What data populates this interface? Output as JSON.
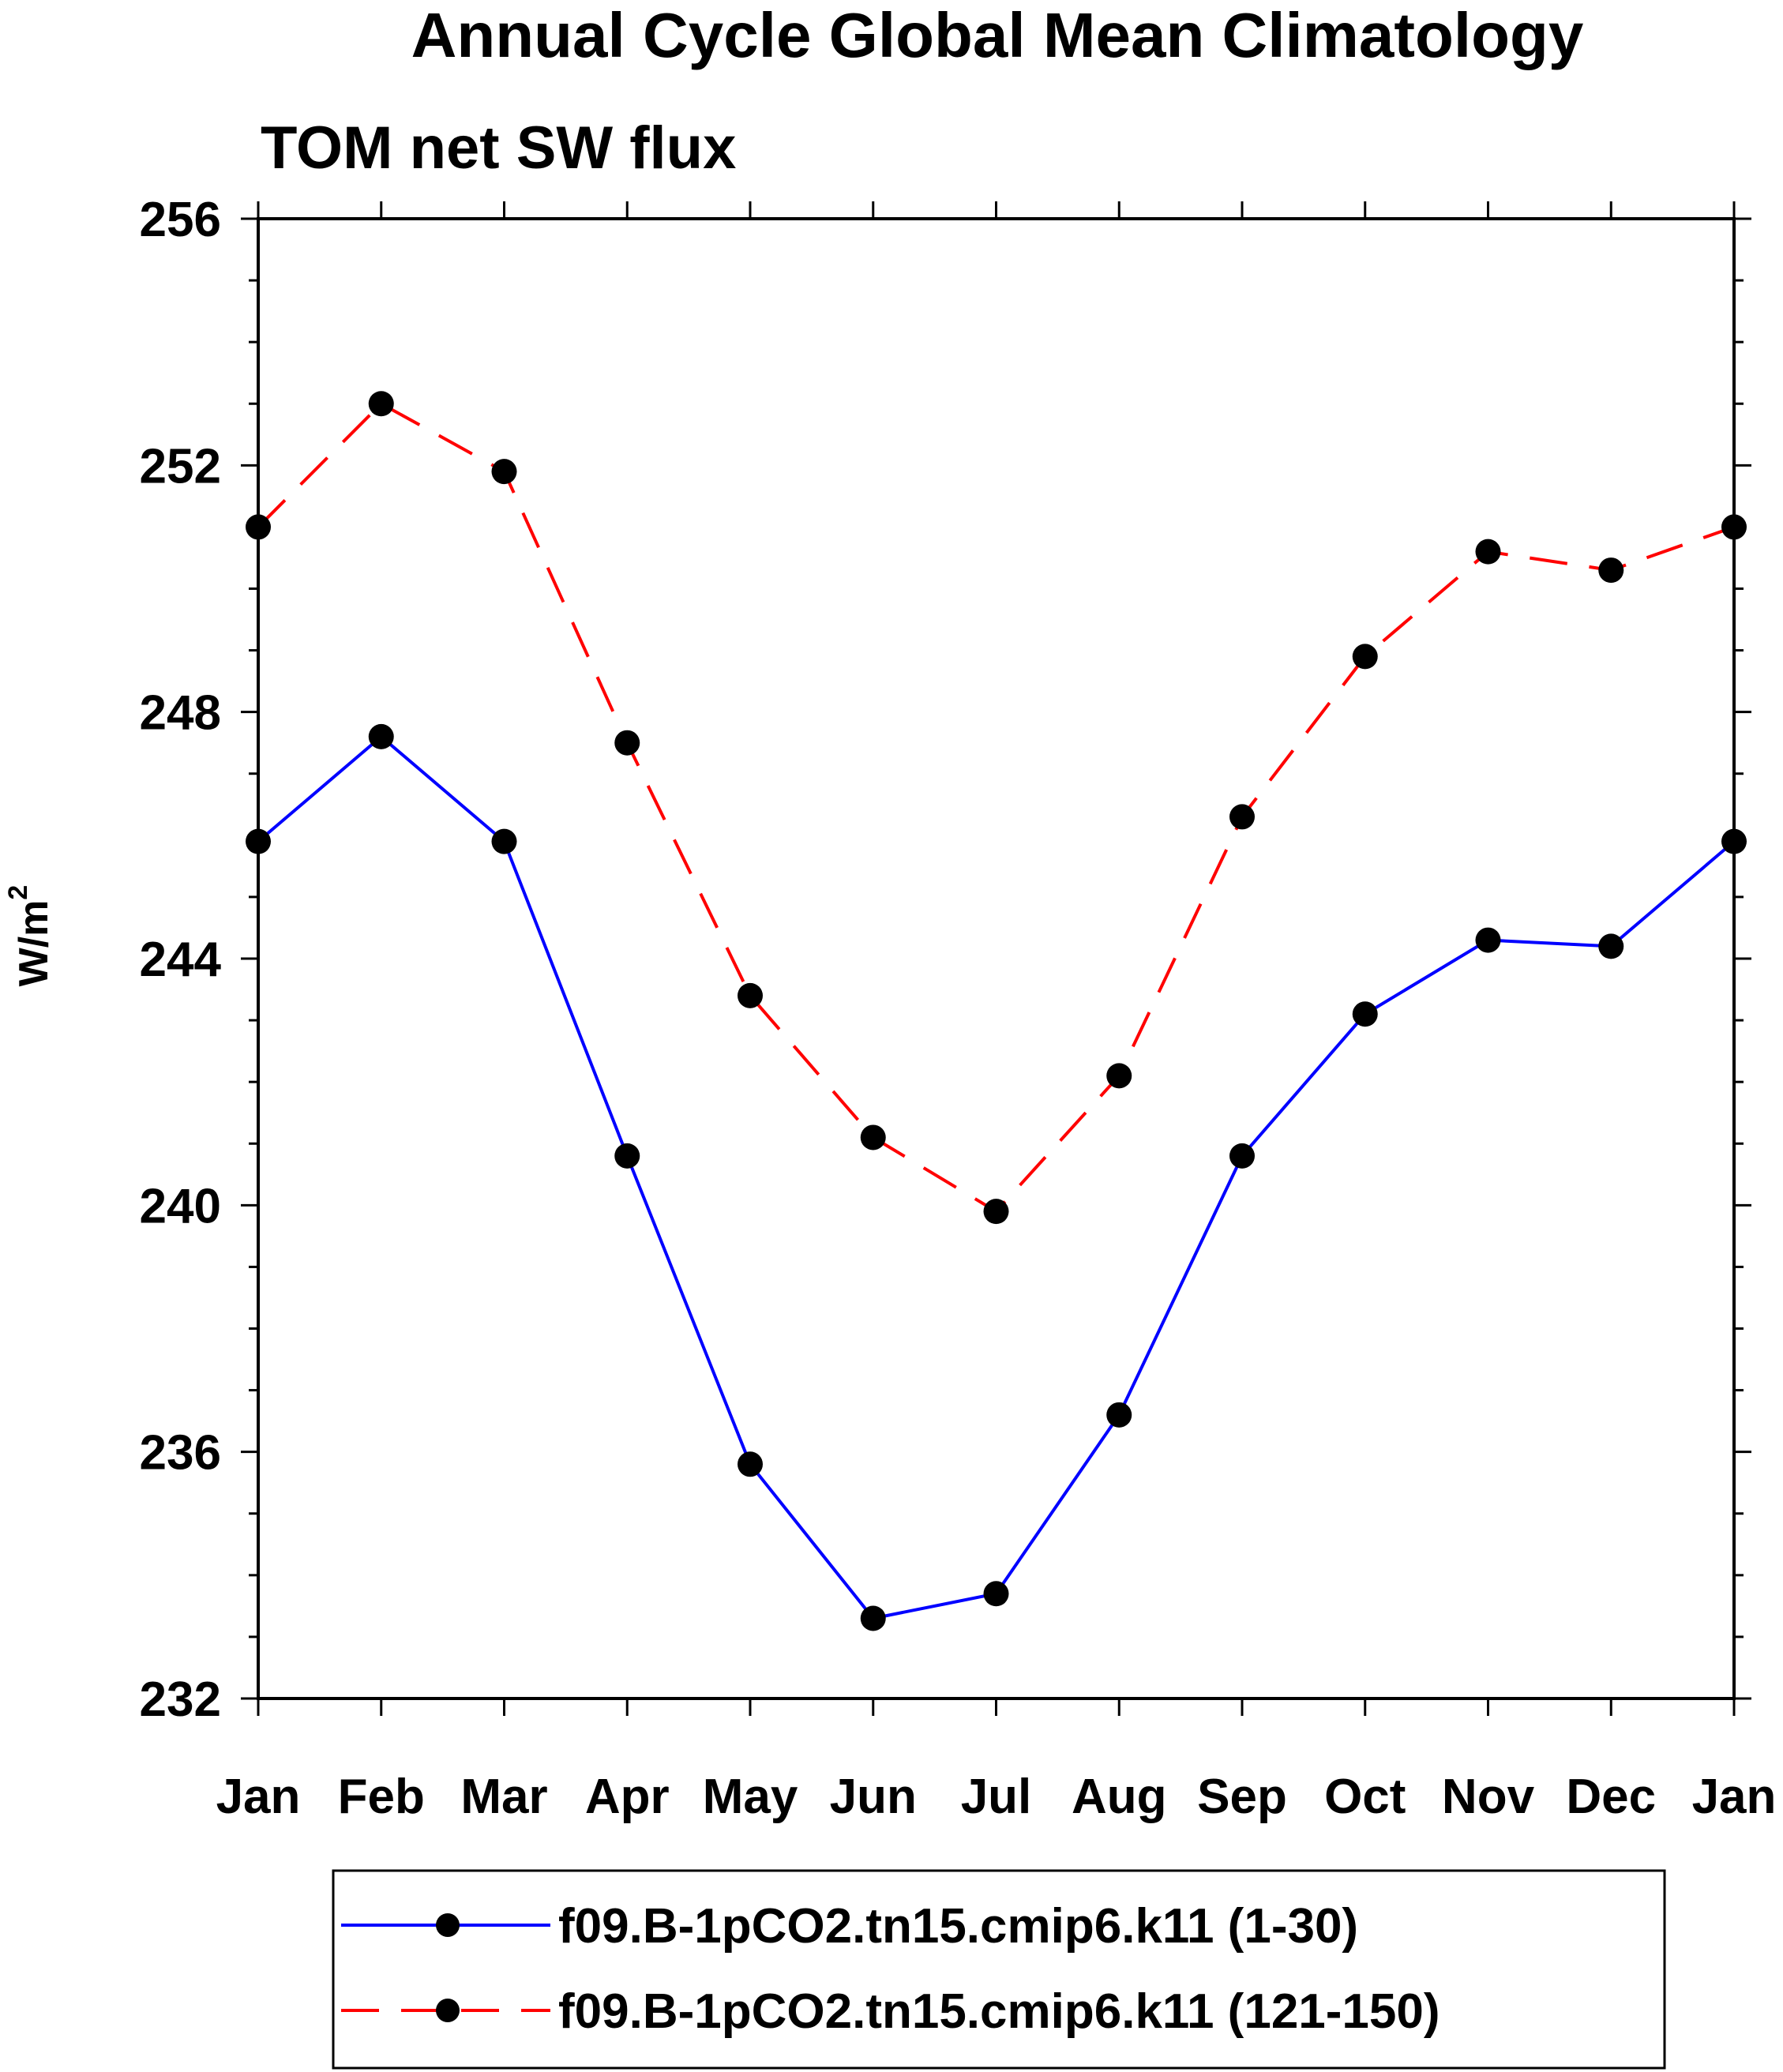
{
  "chart_data": {
    "type": "line",
    "title": "Annual Cycle Global Mean Climatology",
    "subtitle": "TOM net SW flux",
    "xlabel": "",
    "ylabel": "W/m",
    "ylabel_sup": "2",
    "categories": [
      "Jan",
      "Feb",
      "Mar",
      "Apr",
      "May",
      "Jun",
      "Jul",
      "Aug",
      "Sep",
      "Oct",
      "Nov",
      "Dec",
      "Jan"
    ],
    "ylim": [
      232,
      256
    ],
    "yticks": [
      232,
      236,
      240,
      244,
      248,
      252,
      256
    ],
    "yticks_labels": [
      "232",
      "236",
      "240",
      "244",
      "248",
      "252",
      "256"
    ],
    "grid": false,
    "legend_position": "bottom",
    "series": [
      {
        "name": "f09.B-1pCO2.tn15.cmip6.k11 (1-30)",
        "color": "#0000ff",
        "line_style": "solid",
        "marker": "filled-circle",
        "values": [
          245.9,
          247.6,
          245.9,
          240.8,
          235.8,
          233.3,
          233.7,
          236.6,
          240.8,
          243.1,
          244.3,
          244.2,
          245.9
        ]
      },
      {
        "name": "f09.B-1pCO2.tn15.cmip6.k11 (121-150)",
        "color": "#ff0000",
        "line_style": "dashed",
        "marker": "filled-circle",
        "values": [
          251.0,
          253.0,
          251.9,
          247.5,
          243.4,
          241.1,
          239.9,
          242.1,
          246.3,
          248.9,
          250.6,
          250.3,
          251.0
        ]
      }
    ]
  }
}
